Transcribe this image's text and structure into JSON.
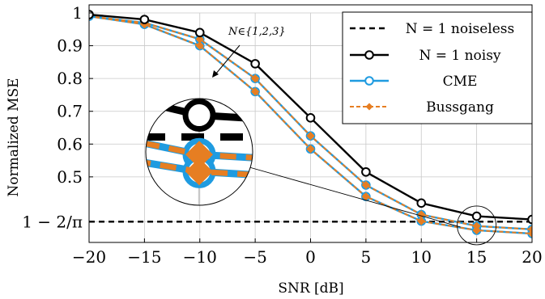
{
  "chart_data": {
    "type": "line",
    "xlabel": "SNR [dB]",
    "ylabel": "Normalized MSE",
    "xlim": [
      -20,
      20
    ],
    "ylim": [
      0.3,
      1.0
    ],
    "xticks": [
      -20,
      -15,
      -10,
      -5,
      0,
      5,
      10,
      15,
      20
    ],
    "xtick_labels": [
      "−20",
      "−15",
      "−10",
      "−5",
      "0",
      "5",
      "10",
      "15",
      "20"
    ],
    "yticks": [
      0.3634,
      0.5,
      0.6,
      0.7,
      0.8,
      0.9,
      1.0
    ],
    "ytick_labels": [
      "1 − 2/π",
      "0.5",
      "0.6",
      "0.7",
      "0.8",
      "0.9",
      "1"
    ],
    "grid": true,
    "legend_position": "top-right",
    "x": [
      -20,
      -15,
      -10,
      -5,
      0,
      5,
      10,
      15,
      20
    ],
    "series": [
      {
        "name": "N = 1 noiseless",
        "color": "#000000",
        "style": "dashed",
        "marker": "none",
        "values": [
          0.3634,
          0.3634,
          0.3634,
          0.3634,
          0.3634,
          0.3634,
          0.3634,
          0.3634,
          0.3634
        ]
      },
      {
        "name": "N = 1 noisy",
        "color": "#000000",
        "style": "solid",
        "marker": "circle",
        "values": [
          0.995,
          0.98,
          0.94,
          0.845,
          0.68,
          0.515,
          0.42,
          0.38,
          0.37
        ]
      },
      {
        "name": "CME",
        "color": "#1f9be0",
        "style": "solid",
        "marker": "circle",
        "groups": [
          [
            0.99,
            0.97,
            0.92,
            0.8,
            0.625,
            0.475,
            0.385,
            0.35,
            0.34
          ],
          [
            0.99,
            0.965,
            0.9,
            0.76,
            0.585,
            0.44,
            0.365,
            0.337,
            0.327
          ]
        ]
      },
      {
        "name": "Bussgang",
        "color": "#e67e22",
        "style": "dashed",
        "marker": "diamond",
        "groups": [
          [
            0.99,
            0.97,
            0.92,
            0.8,
            0.625,
            0.475,
            0.385,
            0.35,
            0.34
          ],
          [
            0.99,
            0.965,
            0.9,
            0.76,
            0.585,
            0.44,
            0.365,
            0.337,
            0.327
          ]
        ]
      }
    ],
    "annotation": "N∈{1,2,3}"
  },
  "colors": {
    "noisy": "#000000",
    "cme": "#1f9be0",
    "bussgang": "#e67e22",
    "grid": "#c8c8c8"
  }
}
